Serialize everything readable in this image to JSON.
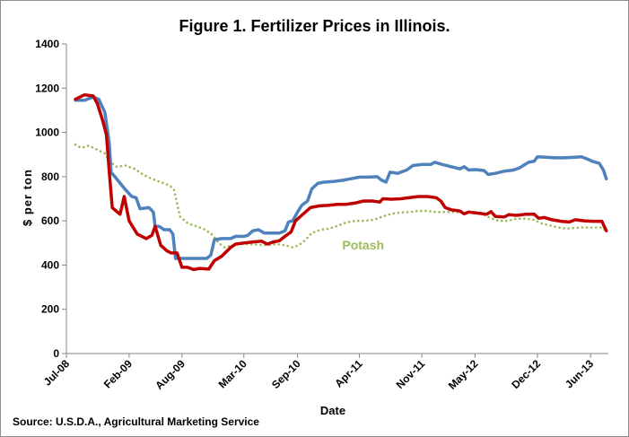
{
  "source_note": "Source:  U.S.D.A.,  Agricultural Marketing Service",
  "chart_data": {
    "type": "line",
    "title": "Figure 1.  Fertilizer Prices in Illinois.",
    "xlabel": "Date",
    "ylabel": "$ per ton",
    "ylim": [
      0,
      1400
    ],
    "yticks": [
      0,
      200,
      400,
      600,
      800,
      1000,
      1200,
      1400
    ],
    "xlim": [
      "2008-07-01",
      "2013-08-01"
    ],
    "xticks": [
      {
        "date": "2008-07-01",
        "label": "Jul-08"
      },
      {
        "date": "2009-02-01",
        "label": "Feb-09"
      },
      {
        "date": "2009-08-01",
        "label": "Aug-09"
      },
      {
        "date": "2010-03-01",
        "label": "Mar-10"
      },
      {
        "date": "2010-09-01",
        "label": "Sep-10"
      },
      {
        "date": "2011-04-01",
        "label": "Apr-11"
      },
      {
        "date": "2011-11-01",
        "label": "Nov-11"
      },
      {
        "date": "2012-05-01",
        "label": "May-12"
      },
      {
        "date": "2012-12-01",
        "label": "Dec-12"
      },
      {
        "date": "2013-06-01",
        "label": "Jun-13"
      }
    ],
    "grid": false,
    "annotations": [
      {
        "text": "Potash",
        "series_index": 2,
        "x": "2011-02-01",
        "y": 470
      }
    ],
    "series": [
      {
        "color": "#4f81bd",
        "style": "solid",
        "points": [
          [
            "2008-08-01",
            1145
          ],
          [
            "2008-09-01",
            1145
          ],
          [
            "2008-10-01",
            1160
          ],
          [
            "2008-10-20",
            1150
          ],
          [
            "2008-11-10",
            1090
          ],
          [
            "2008-11-25",
            950
          ],
          [
            "2008-12-01",
            820
          ],
          [
            "2008-12-20",
            790
          ],
          [
            "2009-01-20",
            740
          ],
          [
            "2009-02-10",
            710
          ],
          [
            "2009-02-25",
            705
          ],
          [
            "2009-03-10",
            655
          ],
          [
            "2009-04-10",
            660
          ],
          [
            "2009-04-25",
            640
          ],
          [
            "2009-05-01",
            575
          ],
          [
            "2009-05-15",
            575
          ],
          [
            "2009-06-01",
            560
          ],
          [
            "2009-06-20",
            560
          ],
          [
            "2009-07-01",
            540
          ],
          [
            "2009-07-10",
            430
          ],
          [
            "2009-08-01",
            430
          ],
          [
            "2009-09-01",
            430
          ],
          [
            "2009-10-01",
            430
          ],
          [
            "2009-10-25",
            430
          ],
          [
            "2009-11-08",
            445
          ],
          [
            "2009-11-20",
            515
          ],
          [
            "2009-12-15",
            520
          ],
          [
            "2010-01-15",
            520
          ],
          [
            "2010-02-01",
            530
          ],
          [
            "2010-03-01",
            530
          ],
          [
            "2010-03-15",
            535
          ],
          [
            "2010-04-01",
            555
          ],
          [
            "2010-04-20",
            560
          ],
          [
            "2010-05-10",
            545
          ],
          [
            "2010-06-01",
            545
          ],
          [
            "2010-07-01",
            545
          ],
          [
            "2010-07-20",
            555
          ],
          [
            "2010-08-01",
            595
          ],
          [
            "2010-08-15",
            600
          ],
          [
            "2010-09-01",
            640
          ],
          [
            "2010-09-15",
            670
          ],
          [
            "2010-10-05",
            690
          ],
          [
            "2010-10-20",
            745
          ],
          [
            "2010-11-10",
            770
          ],
          [
            "2010-12-01",
            775
          ],
          [
            "2011-01-01",
            778
          ],
          [
            "2011-02-01",
            783
          ],
          [
            "2011-03-01",
            790
          ],
          [
            "2011-04-01",
            798
          ],
          [
            "2011-05-01",
            798
          ],
          [
            "2011-06-01",
            800
          ],
          [
            "2011-06-15",
            785
          ],
          [
            "2011-07-01",
            775
          ],
          [
            "2011-07-15",
            820
          ],
          [
            "2011-08-10",
            815
          ],
          [
            "2011-09-10",
            830
          ],
          [
            "2011-10-01",
            850
          ],
          [
            "2011-11-01",
            855
          ],
          [
            "2011-12-01",
            855
          ],
          [
            "2011-12-15",
            865
          ],
          [
            "2012-01-10",
            855
          ],
          [
            "2012-02-10",
            845
          ],
          [
            "2012-03-10",
            835
          ],
          [
            "2012-03-25",
            845
          ],
          [
            "2012-04-10",
            830
          ],
          [
            "2012-05-01",
            832
          ],
          [
            "2012-06-01",
            828
          ],
          [
            "2012-06-15",
            810
          ],
          [
            "2012-07-10",
            815
          ],
          [
            "2012-08-10",
            825
          ],
          [
            "2012-09-10",
            830
          ],
          [
            "2012-10-01",
            840
          ],
          [
            "2012-11-01",
            865
          ],
          [
            "2012-11-20",
            870
          ],
          [
            "2012-12-01",
            890
          ],
          [
            "2013-01-01",
            888
          ],
          [
            "2013-02-01",
            885
          ],
          [
            "2013-03-01",
            885
          ],
          [
            "2013-04-01",
            887
          ],
          [
            "2013-05-01",
            890
          ],
          [
            "2013-05-20",
            880
          ],
          [
            "2013-06-10",
            868
          ],
          [
            "2013-07-01",
            860
          ],
          [
            "2013-07-15",
            830
          ],
          [
            "2013-07-25",
            790
          ]
        ]
      },
      {
        "color": "#c00000",
        "style": "solid",
        "points": [
          [
            "2008-08-01",
            1150
          ],
          [
            "2008-09-01",
            1170
          ],
          [
            "2008-10-01",
            1165
          ],
          [
            "2008-10-15",
            1130
          ],
          [
            "2008-11-01",
            1060
          ],
          [
            "2008-11-15",
            990
          ],
          [
            "2008-11-25",
            820
          ],
          [
            "2008-12-05",
            660
          ],
          [
            "2009-01-01",
            630
          ],
          [
            "2009-01-15",
            710
          ],
          [
            "2009-02-01",
            600
          ],
          [
            "2009-03-01",
            540
          ],
          [
            "2009-04-01",
            520
          ],
          [
            "2009-04-20",
            535
          ],
          [
            "2009-05-01",
            575
          ],
          [
            "2009-05-20",
            490
          ],
          [
            "2009-06-10",
            465
          ],
          [
            "2009-06-25",
            455
          ],
          [
            "2009-07-15",
            455
          ],
          [
            "2009-08-01",
            390
          ],
          [
            "2009-08-20",
            390
          ],
          [
            "2009-09-10",
            380
          ],
          [
            "2009-10-01",
            385
          ],
          [
            "2009-11-01",
            382
          ],
          [
            "2009-11-20",
            420
          ],
          [
            "2009-12-15",
            440
          ],
          [
            "2010-01-15",
            480
          ],
          [
            "2010-02-01",
            495
          ],
          [
            "2010-03-01",
            500
          ],
          [
            "2010-04-01",
            505
          ],
          [
            "2010-05-01",
            508
          ],
          [
            "2010-05-20",
            495
          ],
          [
            "2010-06-10",
            505
          ],
          [
            "2010-07-01",
            510
          ],
          [
            "2010-07-15",
            525
          ],
          [
            "2010-08-10",
            550
          ],
          [
            "2010-08-25",
            600
          ],
          [
            "2010-09-15",
            625
          ],
          [
            "2010-10-15",
            660
          ],
          [
            "2010-11-15",
            668
          ],
          [
            "2010-12-15",
            670
          ],
          [
            "2011-01-15",
            675
          ],
          [
            "2011-02-15",
            675
          ],
          [
            "2011-03-15",
            680
          ],
          [
            "2011-04-15",
            690
          ],
          [
            "2011-05-15",
            690
          ],
          [
            "2011-06-10",
            685
          ],
          [
            "2011-06-20",
            700
          ],
          [
            "2011-07-20",
            698
          ],
          [
            "2011-08-20",
            700
          ],
          [
            "2011-09-20",
            705
          ],
          [
            "2011-10-20",
            710
          ],
          [
            "2011-11-20",
            710
          ],
          [
            "2011-12-20",
            705
          ],
          [
            "2012-01-05",
            690
          ],
          [
            "2012-01-20",
            660
          ],
          [
            "2012-02-10",
            650
          ],
          [
            "2012-03-10",
            645
          ],
          [
            "2012-03-25",
            632
          ],
          [
            "2012-04-10",
            640
          ],
          [
            "2012-05-10",
            635
          ],
          [
            "2012-06-10",
            630
          ],
          [
            "2012-06-25",
            642
          ],
          [
            "2012-07-10",
            620
          ],
          [
            "2012-08-10",
            618
          ],
          [
            "2012-08-25",
            628
          ],
          [
            "2012-09-20",
            625
          ],
          [
            "2012-10-20",
            630
          ],
          [
            "2012-11-20",
            630
          ],
          [
            "2012-12-05",
            612
          ],
          [
            "2012-12-25",
            615
          ],
          [
            "2013-01-20",
            605
          ],
          [
            "2013-02-20",
            598
          ],
          [
            "2013-03-20",
            595
          ],
          [
            "2013-04-10",
            605
          ],
          [
            "2013-05-10",
            600
          ],
          [
            "2013-06-10",
            598
          ],
          [
            "2013-07-10",
            598
          ],
          [
            "2013-07-25",
            555
          ]
        ]
      },
      {
        "color": "#9bbb59",
        "style": "dotted",
        "points": [
          [
            "2008-08-01",
            945
          ],
          [
            "2008-08-20",
            930
          ],
          [
            "2008-09-15",
            940
          ],
          [
            "2008-10-10",
            925
          ],
          [
            "2008-11-10",
            905
          ],
          [
            "2008-11-25",
            870
          ],
          [
            "2008-12-20",
            845
          ],
          [
            "2009-01-20",
            850
          ],
          [
            "2009-02-20",
            835
          ],
          [
            "2009-03-20",
            810
          ],
          [
            "2009-04-20",
            790
          ],
          [
            "2009-05-20",
            775
          ],
          [
            "2009-06-20",
            760
          ],
          [
            "2009-07-05",
            740
          ],
          [
            "2009-07-25",
            620
          ],
          [
            "2009-08-20",
            590
          ],
          [
            "2009-09-20",
            575
          ],
          [
            "2009-10-20",
            560
          ],
          [
            "2009-11-15",
            535
          ],
          [
            "2009-12-05",
            500
          ],
          [
            "2009-12-25",
            480
          ],
          [
            "2010-01-20",
            490
          ],
          [
            "2010-02-20",
            495
          ],
          [
            "2010-03-20",
            495
          ],
          [
            "2010-04-20",
            492
          ],
          [
            "2010-05-20",
            490
          ],
          [
            "2010-06-20",
            495
          ],
          [
            "2010-07-20",
            490
          ],
          [
            "2010-08-15",
            480
          ],
          [
            "2010-09-05",
            490
          ],
          [
            "2010-09-25",
            510
          ],
          [
            "2010-10-20",
            545
          ],
          [
            "2010-11-20",
            560
          ],
          [
            "2010-12-20",
            565
          ],
          [
            "2011-01-20",
            580
          ],
          [
            "2011-02-20",
            595
          ],
          [
            "2011-03-20",
            600
          ],
          [
            "2011-04-20",
            600
          ],
          [
            "2011-05-20",
            605
          ],
          [
            "2011-06-20",
            620
          ],
          [
            "2011-07-20",
            632
          ],
          [
            "2011-08-20",
            638
          ],
          [
            "2011-09-20",
            640
          ],
          [
            "2011-10-20",
            645
          ],
          [
            "2011-11-20",
            645
          ],
          [
            "2011-12-20",
            640
          ],
          [
            "2012-01-20",
            640
          ],
          [
            "2012-02-20",
            640
          ],
          [
            "2012-03-20",
            638
          ],
          [
            "2012-04-20",
            638
          ],
          [
            "2012-05-20",
            635
          ],
          [
            "2012-06-20",
            615
          ],
          [
            "2012-07-20",
            600
          ],
          [
            "2012-08-20",
            600
          ],
          [
            "2012-09-20",
            610
          ],
          [
            "2012-10-20",
            610
          ],
          [
            "2012-11-20",
            605
          ],
          [
            "2012-12-10",
            590
          ],
          [
            "2013-01-10",
            580
          ],
          [
            "2013-02-10",
            570
          ],
          [
            "2013-03-10",
            565
          ],
          [
            "2013-04-10",
            568
          ],
          [
            "2013-05-10",
            570
          ],
          [
            "2013-06-10",
            570
          ],
          [
            "2013-07-10",
            570
          ],
          [
            "2013-07-25",
            555
          ]
        ]
      }
    ]
  }
}
